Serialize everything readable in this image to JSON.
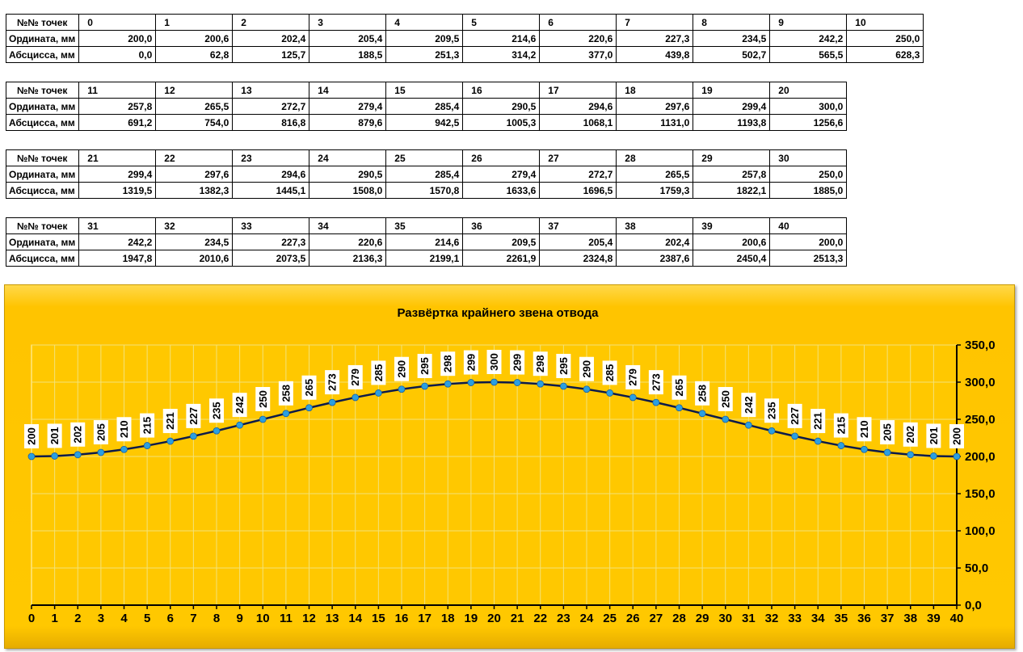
{
  "tables": {
    "row_labels": {
      "points": "№№ точек",
      "ordinate": "Ордината, мм",
      "abscissa": "Абсцисса, мм"
    },
    "blocks": [
      {
        "points": [
          "0",
          "1",
          "2",
          "3",
          "4",
          "5",
          "6",
          "7",
          "8",
          "9",
          "10"
        ],
        "ordinate": [
          "200,0",
          "200,6",
          "202,4",
          "205,4",
          "209,5",
          "214,6",
          "220,6",
          "227,3",
          "234,5",
          "242,2",
          "250,0"
        ],
        "abscissa": [
          "0,0",
          "62,8",
          "125,7",
          "188,5",
          "251,3",
          "314,2",
          "377,0",
          "439,8",
          "502,7",
          "565,5",
          "628,3"
        ]
      },
      {
        "points": [
          "11",
          "12",
          "13",
          "14",
          "15",
          "16",
          "17",
          "18",
          "19",
          "20"
        ],
        "ordinate": [
          "257,8",
          "265,5",
          "272,7",
          "279,4",
          "285,4",
          "290,5",
          "294,6",
          "297,6",
          "299,4",
          "300,0"
        ],
        "abscissa": [
          "691,2",
          "754,0",
          "816,8",
          "879,6",
          "942,5",
          "1005,3",
          "1068,1",
          "1131,0",
          "1193,8",
          "1256,6"
        ]
      },
      {
        "points": [
          "21",
          "22",
          "23",
          "24",
          "25",
          "26",
          "27",
          "28",
          "29",
          "30"
        ],
        "ordinate": [
          "299,4",
          "297,6",
          "294,6",
          "290,5",
          "285,4",
          "279,4",
          "272,7",
          "265,5",
          "257,8",
          "250,0"
        ],
        "abscissa": [
          "1319,5",
          "1382,3",
          "1445,1",
          "1508,0",
          "1570,8",
          "1633,6",
          "1696,5",
          "1759,3",
          "1822,1",
          "1885,0"
        ]
      },
      {
        "points": [
          "31",
          "32",
          "33",
          "34",
          "35",
          "36",
          "37",
          "38",
          "39",
          "40"
        ],
        "ordinate": [
          "242,2",
          "234,5",
          "227,3",
          "220,6",
          "214,6",
          "209,5",
          "205,4",
          "202,4",
          "200,6",
          "200,0"
        ],
        "abscissa": [
          "1947,8",
          "2010,6",
          "2073,5",
          "2136,3",
          "2199,1",
          "2261,9",
          "2324,8",
          "2387,6",
          "2450,4",
          "2513,3"
        ]
      }
    ]
  },
  "chart_data": {
    "type": "line",
    "title": "Развёртка крайнего звена отвода",
    "xlabel": "",
    "ylabel": "",
    "x": [
      0,
      1,
      2,
      3,
      4,
      5,
      6,
      7,
      8,
      9,
      10,
      11,
      12,
      13,
      14,
      15,
      16,
      17,
      18,
      19,
      20,
      21,
      22,
      23,
      24,
      25,
      26,
      27,
      28,
      29,
      30,
      31,
      32,
      33,
      34,
      35,
      36,
      37,
      38,
      39,
      40
    ],
    "values": [
      200.0,
      200.6,
      202.4,
      205.4,
      209.5,
      214.6,
      220.6,
      227.3,
      234.5,
      242.2,
      250.0,
      257.8,
      265.5,
      272.7,
      279.4,
      285.4,
      290.5,
      294.6,
      297.6,
      299.4,
      300.0,
      299.4,
      297.6,
      294.6,
      290.5,
      285.4,
      279.4,
      272.7,
      265.5,
      257.8,
      250.0,
      242.2,
      234.5,
      227.3,
      220.6,
      214.6,
      209.5,
      205.4,
      202.4,
      200.6,
      200.0
    ],
    "data_labels": [
      "200",
      "201",
      "202",
      "205",
      "210",
      "215",
      "221",
      "227",
      "235",
      "242",
      "250",
      "258",
      "265",
      "273",
      "279",
      "285",
      "290",
      "295",
      "298",
      "299",
      "300",
      "299",
      "298",
      "295",
      "290",
      "285",
      "279",
      "273",
      "265",
      "258",
      "250",
      "242",
      "235",
      "227",
      "221",
      "215",
      "210",
      "205",
      "202",
      "201",
      "200"
    ],
    "y_ticks": [
      "0,0",
      "50,0",
      "100,0",
      "150,0",
      "200,0",
      "250,0",
      "300,0",
      "350,0"
    ],
    "ylim": [
      0,
      350
    ],
    "xlim": [
      0,
      40
    ],
    "y_axis_side": "right",
    "grid": true,
    "legend": "none",
    "colors": {
      "line": "#0d1b4a",
      "marker": "#2b9fe0",
      "background": "#ffc800",
      "grid": "#f3e27a"
    }
  }
}
